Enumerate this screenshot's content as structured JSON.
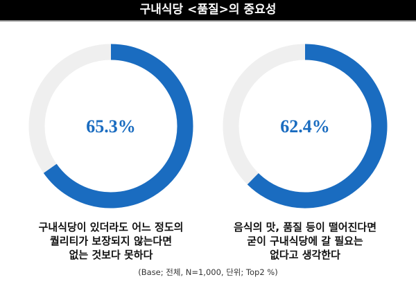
{
  "chart_data": [
    {
      "type": "pie",
      "variant": "donut",
      "title": "구내식당 <품질>의 중요성",
      "value": 65.3,
      "label": "65.3%",
      "caption": [
        "구내식당이 있더라도 어느 정도의",
        "퀄리티가 보장되지 않는다면",
        "없는 것보다 못하다"
      ]
    },
    {
      "type": "pie",
      "variant": "donut",
      "title": "구내식당 <품질>의 중요성",
      "value": 62.4,
      "label": "62.4%",
      "caption": [
        "음식의 맛, 품질 등이 떨어진다면",
        "굳이 구내식당에 갈 필요는",
        "없다고 생각한다"
      ]
    }
  ],
  "title": "구내식당 <품질>의 중요성",
  "footnote": "(Base; 전체, N=1,000, 단위; Top2 %)",
  "colors": {
    "accent": "#1a6cc0",
    "track": "#efefef"
  }
}
